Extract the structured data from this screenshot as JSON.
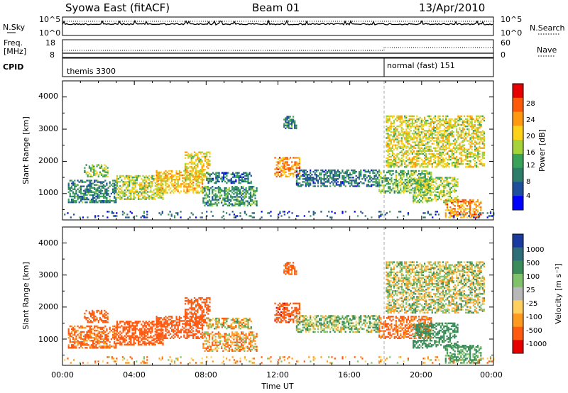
{
  "header": {
    "station": "Syowa East (fitACF)",
    "beam": "Beam 01",
    "date": "13/Apr/2010"
  },
  "nsky_panel": {
    "left_label": "N.Sky",
    "left_ticks": [
      "10^5",
      "10^0"
    ],
    "right_label": "N.Search",
    "right_ticks": [
      "10^5",
      "10^0"
    ]
  },
  "freq_panel": {
    "left_label_1": "Freq.",
    "left_label_2": "[MHz]",
    "left_ticks": [
      "18",
      "8"
    ],
    "right_label": "Nave",
    "right_ticks": [
      "60",
      "0"
    ]
  },
  "cpid_panel": {
    "label": "CPID",
    "modes": [
      {
        "name": "themis 3300",
        "start_hour": 0
      },
      {
        "name": "normal (fast) 151",
        "start_hour": 18
      }
    ]
  },
  "colors": {
    "power_scale": [
      "#0000ff",
      "#1d4f9c",
      "#2e7d6b",
      "#3aa35a",
      "#a6d23a",
      "#ffd21a",
      "#ff9a10",
      "#ff5a0a",
      "#e60000"
    ],
    "velocity_scale": [
      "#1a3aa0",
      "#2e6e78",
      "#3a8c5a",
      "#7fc26a",
      "#b8b8b8",
      "#ffd060",
      "#ff9a20",
      "#ff5a10",
      "#e60000"
    ]
  },
  "chart_data": [
    {
      "type": "heatmap",
      "name": "power-panel",
      "xlabel": "",
      "ylabel": "Slant Range [km]",
      "xlim": [
        0,
        24
      ],
      "ylim": [
        180,
        4500
      ],
      "yticks": [
        "1000",
        "2000",
        "3000",
        "4000"
      ],
      "xticks": [
        "00:00",
        "04:00",
        "08:00",
        "12:00",
        "16:00",
        "20:00",
        "00:00"
      ],
      "colorbar": {
        "label": "Power [dB]",
        "ticks": [
          "4",
          "8",
          "12",
          "16",
          "20",
          "24",
          "28"
        ],
        "range": [
          0,
          30
        ]
      },
      "regions": [
        {
          "t0": 0.3,
          "t1": 3.0,
          "r0": 700,
          "r1": 1400,
          "value": 9
        },
        {
          "t0": 1.2,
          "t1": 2.5,
          "r0": 1500,
          "r1": 1900,
          "value": 14
        },
        {
          "t0": 3.0,
          "t1": 5.6,
          "r0": 800,
          "r1": 1550,
          "value": 16
        },
        {
          "t0": 5.2,
          "t1": 7.8,
          "r0": 1000,
          "r1": 1700,
          "value": 19
        },
        {
          "t0": 6.8,
          "t1": 8.2,
          "r0": 1400,
          "r1": 2300,
          "value": 18
        },
        {
          "t0": 7.8,
          "t1": 10.8,
          "r0": 600,
          "r1": 1200,
          "value": 10
        },
        {
          "t0": 8.0,
          "t1": 10.5,
          "r0": 1300,
          "r1": 1650,
          "value": 8
        },
        {
          "t0": 11.8,
          "t1": 13.2,
          "r0": 1500,
          "r1": 2100,
          "value": 22
        },
        {
          "t0": 12.3,
          "t1": 13.0,
          "r0": 3000,
          "r1": 3400,
          "value": 9
        },
        {
          "t0": 13.0,
          "t1": 17.6,
          "r0": 1200,
          "r1": 1700,
          "value": 8
        },
        {
          "t0": 17.6,
          "t1": 20.5,
          "r0": 1000,
          "r1": 1700,
          "value": 13
        },
        {
          "t0": 19.5,
          "t1": 22.0,
          "r0": 700,
          "r1": 1500,
          "value": 15
        },
        {
          "t0": 21.3,
          "t1": 23.3,
          "r0": 230,
          "r1": 800,
          "value": 22
        },
        {
          "t0": 18.0,
          "t1": 23.5,
          "r0": 1800,
          "r1": 3400,
          "value": 17
        },
        {
          "t0": 0.0,
          "t1": 24.0,
          "r0": 230,
          "r1": 420,
          "value": 6
        }
      ]
    },
    {
      "type": "heatmap",
      "name": "velocity-panel",
      "xlabel": "Time UT",
      "ylabel": "Slant Range [km]",
      "xlim": [
        0,
        24
      ],
      "ylim": [
        180,
        4500
      ],
      "yticks": [
        "1000",
        "2000",
        "3000",
        "4000"
      ],
      "xticks": [
        "00:00",
        "04:00",
        "08:00",
        "12:00",
        "16:00",
        "20:00",
        "00:00"
      ],
      "colorbar": {
        "label": "Velocity [m s⁻¹]",
        "ticks": [
          "1000",
          "500",
          "100",
          "25",
          "-25",
          "-100",
          "-500",
          "-1000"
        ]
      },
      "regions": [
        {
          "t0": 0.3,
          "t1": 3.0,
          "r0": 700,
          "r1": 1400,
          "value": -150
        },
        {
          "t0": 1.2,
          "t1": 2.5,
          "r0": 1500,
          "r1": 1900,
          "value": -200
        },
        {
          "t0": 3.0,
          "t1": 5.6,
          "r0": 800,
          "r1": 1550,
          "value": -300
        },
        {
          "t0": 5.2,
          "t1": 7.8,
          "r0": 1000,
          "r1": 1700,
          "value": -250
        },
        {
          "t0": 6.8,
          "t1": 8.2,
          "r0": 1400,
          "r1": 2300,
          "value": -300
        },
        {
          "t0": 7.8,
          "t1": 10.8,
          "r0": 600,
          "r1": 1200,
          "value": -60
        },
        {
          "t0": 8.0,
          "t1": 10.5,
          "r0": 1300,
          "r1": 1650,
          "value": 0
        },
        {
          "t0": 11.8,
          "t1": 13.2,
          "r0": 1500,
          "r1": 2100,
          "value": -400
        },
        {
          "t0": 12.3,
          "t1": 13.0,
          "r0": 3000,
          "r1": 3400,
          "value": -150
        },
        {
          "t0": 13.0,
          "t1": 17.6,
          "r0": 1200,
          "r1": 1700,
          "value": 80
        },
        {
          "t0": 17.6,
          "t1": 20.5,
          "r0": 1000,
          "r1": 1700,
          "value": -150
        },
        {
          "t0": 19.5,
          "t1": 22.0,
          "r0": 700,
          "r1": 1500,
          "value": 200
        },
        {
          "t0": 21.3,
          "t1": 23.3,
          "r0": 230,
          "r1": 800,
          "value": 150
        },
        {
          "t0": 18.0,
          "t1": 23.5,
          "r0": 1800,
          "r1": 3400,
          "value": 30
        },
        {
          "t0": 0.0,
          "t1": 24.0,
          "r0": 230,
          "r1": 420,
          "value": -60
        }
      ]
    }
  ]
}
